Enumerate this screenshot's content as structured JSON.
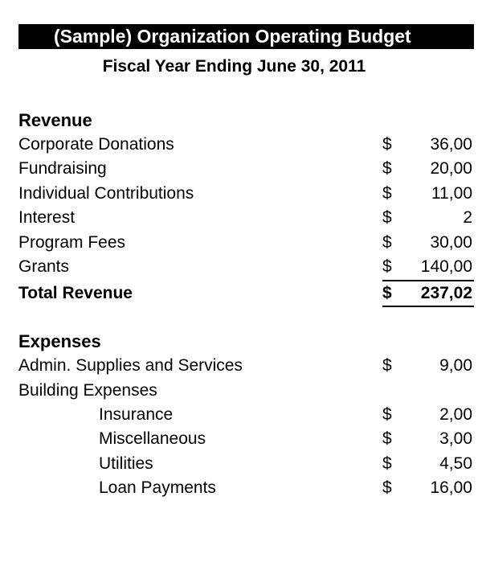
{
  "document": {
    "title": "(Sample) Organization Operating Budget",
    "subtitle": "Fiscal Year Ending June 30, 2011",
    "background_color": "#ffffff",
    "title_bar_bg": "#000000",
    "title_bar_fg": "#ffffff",
    "title_fontsize": 23,
    "subtitle_fontsize": 21,
    "body_fontsize": 21,
    "font_family": "Arial"
  },
  "revenue": {
    "header": "Revenue",
    "items": [
      {
        "label": "Corporate Donations",
        "amount": "36,00"
      },
      {
        "label": "Fundraising",
        "amount": "20,00"
      },
      {
        "label": "Individual Contributions",
        "amount": "11,00"
      },
      {
        "label": "Interest",
        "amount": "2"
      },
      {
        "label": "Program Fees",
        "amount": "30,00"
      },
      {
        "label": "Grants",
        "amount": "140,00"
      }
    ],
    "total_label": "Total Revenue",
    "total_amount": "237,02",
    "currency_symbol": "$"
  },
  "expenses": {
    "header": "Expenses",
    "items": [
      {
        "label": "Admin. Supplies and Services",
        "amount": "9,00",
        "indent": false
      },
      {
        "label": "Building Expenses",
        "amount": "",
        "indent": false
      },
      {
        "label": "Insurance",
        "amount": "2,00",
        "indent": true
      },
      {
        "label": "Miscellaneous",
        "amount": "3,00",
        "indent": true
      },
      {
        "label": "Utilities",
        "amount": "4,50",
        "indent": true
      },
      {
        "label": "Loan Payments",
        "amount": "16,00",
        "indent": true
      }
    ],
    "currency_symbol": "$"
  },
  "style": {
    "underline_color": "#000000",
    "underline_width": 2
  }
}
